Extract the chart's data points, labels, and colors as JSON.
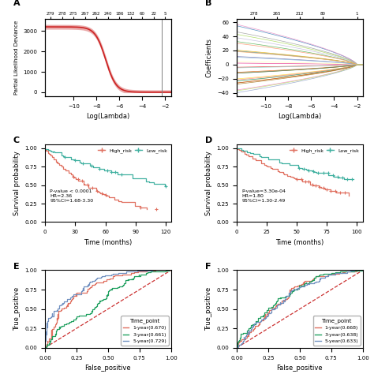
{
  "panel_A": {
    "label": "A",
    "top_ticks": [
      279,
      278,
      275,
      267,
      262,
      240,
      186,
      132,
      60,
      22,
      5
    ],
    "top_tick_positions": [
      -12,
      -11,
      -10,
      -9,
      -8,
      -7,
      -6,
      -5,
      -4,
      -3,
      -2
    ],
    "xlabel": "Log(Lambda)",
    "ylabel": "Partial Likelihood Deviance",
    "xlim": [
      -12.5,
      -1.5
    ],
    "ylim": [
      -200,
      3600
    ],
    "vline_x": -2.3,
    "curve_color": "#cc2222",
    "ribbon_color": "#e8a0a0",
    "yticks": [
      0,
      1000,
      2000,
      3000
    ],
    "xticks": [
      -10,
      -8,
      -6,
      -4,
      -2
    ]
  },
  "panel_B": {
    "label": "B",
    "top_ticks": [
      278,
      265,
      212,
      80,
      1
    ],
    "top_tick_positions": [
      -11,
      -9,
      -7,
      -5,
      -2
    ],
    "xlabel": "Log(Lambda)",
    "ylabel": "Coefficients",
    "xlim": [
      -12.5,
      -1.5
    ],
    "ylim": [
      -45,
      65
    ],
    "n_lines": 30,
    "xticks": [
      -10,
      -8,
      -6,
      -4,
      -2
    ],
    "yticks": [
      -40,
      -20,
      0,
      20,
      40,
      60
    ]
  },
  "panel_C": {
    "label": "C",
    "xlabel": "Time (months)",
    "ylabel": "Survival probability",
    "xlim": [
      0,
      125
    ],
    "ylim": [
      0.0,
      1.05
    ],
    "xticks": [
      0,
      30,
      60,
      90,
      120
    ],
    "yticks": [
      0.0,
      0.25,
      0.5,
      0.75,
      1.0
    ],
    "high_risk_color": "#e07060",
    "low_risk_color": "#40b0a0",
    "annotation": "P-value < 0.0001\nHR=2.36\n95%CI=1.68-3.30"
  },
  "panel_D": {
    "label": "D",
    "xlabel": "Time (months)",
    "ylabel": "Survival probability",
    "xlim": [
      0,
      105
    ],
    "ylim": [
      0.0,
      1.05
    ],
    "xticks": [
      0,
      25,
      50,
      75,
      100
    ],
    "yticks": [
      0.0,
      0.25,
      0.5,
      0.75,
      1.0
    ],
    "high_risk_color": "#e07060",
    "low_risk_color": "#40b0a0",
    "annotation": "P-value=3.30e-04\nHR=1.80\n95%CI=1.30-2.49"
  },
  "panel_E": {
    "label": "E",
    "xlabel": "False_positive",
    "ylabel": "True_positive",
    "legend": [
      "1-year(0.670)",
      "3-year(0.661)",
      "5-year(0.729)"
    ],
    "colors": [
      "#e07060",
      "#20a060",
      "#7090c0"
    ],
    "xlim": [
      0,
      1
    ],
    "ylim": [
      0,
      1
    ],
    "xticks": [
      0.0,
      0.25,
      0.5,
      0.75,
      1.0
    ],
    "yticks": [
      0.0,
      0.25,
      0.5,
      0.75,
      1.0
    ]
  },
  "panel_F": {
    "label": "F",
    "xlabel": "False_positive",
    "ylabel": "True_positive",
    "legend": [
      "1-year(0.668)",
      "3-year(0.638)",
      "5-year(0.633)"
    ],
    "colors": [
      "#e07060",
      "#20a060",
      "#7090c0"
    ],
    "xlim": [
      0,
      1
    ],
    "ylim": [
      0,
      1
    ],
    "xticks": [
      0.0,
      0.25,
      0.5,
      0.75,
      1.0
    ],
    "yticks": [
      0.0,
      0.25,
      0.5,
      0.75,
      1.0
    ]
  }
}
